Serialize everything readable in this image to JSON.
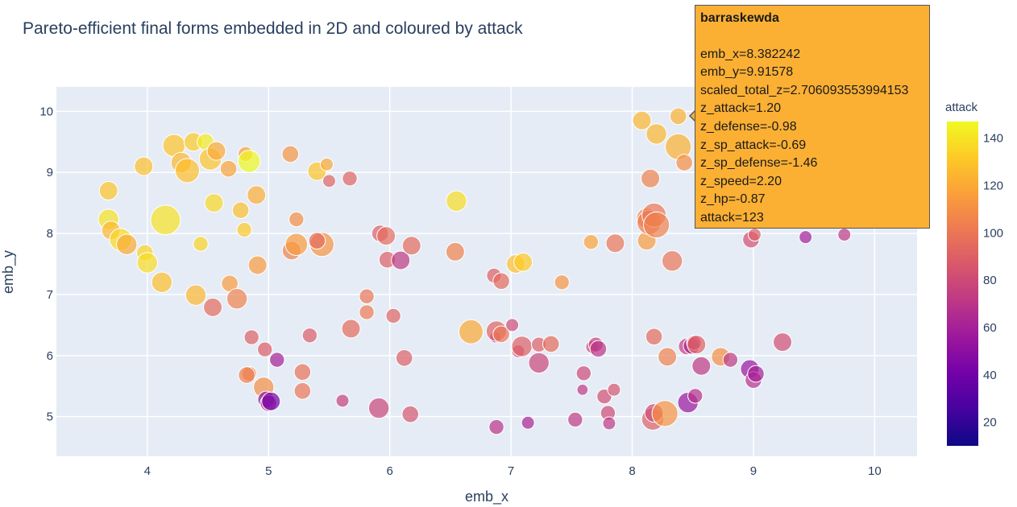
{
  "chart_data": {
    "type": "scatter",
    "title": "Pareto-efficient final forms embedded in 2D and coloured by attack",
    "xlabel": "emb_x",
    "ylabel": "emb_y",
    "xlim": [
      3.25,
      10.35
    ],
    "ylim": [
      4.35,
      10.4
    ],
    "xticks": [
      4,
      5,
      6,
      7,
      8,
      9,
      10
    ],
    "yticks": [
      5,
      6,
      7,
      8,
      9,
      10
    ],
    "grid": true,
    "colorbar": {
      "title": "attack",
      "range": [
        10,
        147
      ],
      "ticks": [
        20,
        40,
        60,
        80,
        100,
        120,
        140
      ]
    },
    "colorscale": [
      "#0d0887",
      "#46039f",
      "#7201a8",
      "#9c179e",
      "#bd3786",
      "#d8576b",
      "#ed7953",
      "#fb9f3a",
      "#fdca26",
      "#f0f921"
    ],
    "points": [
      {
        "x": 3.68,
        "y": 8.7,
        "s": 1.0,
        "a": 130
      },
      {
        "x": 3.68,
        "y": 8.23,
        "s": 1.1,
        "a": 140
      },
      {
        "x": 3.7,
        "y": 8.05,
        "s": 1.0,
        "a": 125
      },
      {
        "x": 3.78,
        "y": 7.9,
        "s": 1.2,
        "a": 137
      },
      {
        "x": 3.83,
        "y": 7.82,
        "s": 1.1,
        "a": 120
      },
      {
        "x": 3.97,
        "y": 9.1,
        "s": 1.0,
        "a": 128
      },
      {
        "x": 3.98,
        "y": 7.68,
        "s": 0.9,
        "a": 135
      },
      {
        "x": 4.0,
        "y": 7.52,
        "s": 1.1,
        "a": 138
      },
      {
        "x": 4.12,
        "y": 7.2,
        "s": 1.1,
        "a": 128
      },
      {
        "x": 4.15,
        "y": 8.22,
        "s": 1.6,
        "a": 140
      },
      {
        "x": 4.22,
        "y": 9.44,
        "s": 1.2,
        "a": 130
      },
      {
        "x": 4.28,
        "y": 9.16,
        "s": 1.1,
        "a": 125
      },
      {
        "x": 4.33,
        "y": 9.03,
        "s": 1.3,
        "a": 128
      },
      {
        "x": 4.38,
        "y": 9.5,
        "s": 1.0,
        "a": 132
      },
      {
        "x": 4.4,
        "y": 6.99,
        "s": 1.1,
        "a": 125
      },
      {
        "x": 4.44,
        "y": 7.83,
        "s": 0.8,
        "a": 135
      },
      {
        "x": 4.48,
        "y": 9.5,
        "s": 0.9,
        "a": 143
      },
      {
        "x": 4.52,
        "y": 9.22,
        "s": 1.2,
        "a": 130
      },
      {
        "x": 4.55,
        "y": 8.5,
        "s": 1.0,
        "a": 136
      },
      {
        "x": 4.54,
        "y": 6.79,
        "s": 1.0,
        "a": 95
      },
      {
        "x": 4.57,
        "y": 9.35,
        "s": 1.0,
        "a": 120
      },
      {
        "x": 4.67,
        "y": 9.06,
        "s": 0.9,
        "a": 118
      },
      {
        "x": 4.68,
        "y": 7.18,
        "s": 0.9,
        "a": 115
      },
      {
        "x": 4.74,
        "y": 6.93,
        "s": 1.1,
        "a": 105
      },
      {
        "x": 4.77,
        "y": 8.38,
        "s": 0.9,
        "a": 128
      },
      {
        "x": 4.8,
        "y": 8.06,
        "s": 0.8,
        "a": 132
      },
      {
        "x": 4.81,
        "y": 9.3,
        "s": 0.8,
        "a": 118
      },
      {
        "x": 4.84,
        "y": 9.18,
        "s": 1.2,
        "a": 147
      },
      {
        "x": 4.86,
        "y": 6.3,
        "s": 0.8,
        "a": 90
      },
      {
        "x": 4.9,
        "y": 8.63,
        "s": 1.0,
        "a": 122
      },
      {
        "x": 4.91,
        "y": 7.48,
        "s": 1.0,
        "a": 115
      },
      {
        "x": 4.84,
        "y": 5.7,
        "s": 0.8,
        "a": 100
      },
      {
        "x": 4.82,
        "y": 5.68,
        "s": 0.9,
        "a": 105
      },
      {
        "x": 4.97,
        "y": 6.1,
        "s": 0.8,
        "a": 88
      },
      {
        "x": 4.96,
        "y": 5.48,
        "s": 1.1,
        "a": 110
      },
      {
        "x": 4.98,
        "y": 5.28,
        "s": 0.9,
        "a": 50
      },
      {
        "x": 5.0,
        "y": 5.22,
        "s": 0.9,
        "a": 70
      },
      {
        "x": 5.02,
        "y": 5.25,
        "s": 1.0,
        "a": 40
      },
      {
        "x": 5.07,
        "y": 5.93,
        "s": 0.8,
        "a": 60
      },
      {
        "x": 5.18,
        "y": 9.3,
        "s": 0.9,
        "a": 112
      },
      {
        "x": 5.19,
        "y": 7.72,
        "s": 1.0,
        "a": 105
      },
      {
        "x": 5.23,
        "y": 8.23,
        "s": 0.8,
        "a": 110
      },
      {
        "x": 5.23,
        "y": 7.82,
        "s": 1.2,
        "a": 115
      },
      {
        "x": 5.28,
        "y": 5.73,
        "s": 0.9,
        "a": 98
      },
      {
        "x": 5.28,
        "y": 5.42,
        "s": 0.9,
        "a": 100
      },
      {
        "x": 5.34,
        "y": 6.33,
        "s": 0.8,
        "a": 88
      },
      {
        "x": 5.4,
        "y": 9.02,
        "s": 1.0,
        "a": 130
      },
      {
        "x": 5.44,
        "y": 7.82,
        "s": 1.3,
        "a": 112
      },
      {
        "x": 5.4,
        "y": 7.88,
        "s": 0.9,
        "a": 95
      },
      {
        "x": 5.48,
        "y": 9.13,
        "s": 0.7,
        "a": 120
      },
      {
        "x": 5.5,
        "y": 8.86,
        "s": 0.7,
        "a": 92
      },
      {
        "x": 5.61,
        "y": 5.26,
        "s": 0.7,
        "a": 75
      },
      {
        "x": 5.67,
        "y": 8.9,
        "s": 0.8,
        "a": 92
      },
      {
        "x": 5.68,
        "y": 6.44,
        "s": 1.0,
        "a": 95
      },
      {
        "x": 5.81,
        "y": 6.97,
        "s": 0.8,
        "a": 100
      },
      {
        "x": 5.81,
        "y": 6.71,
        "s": 0.8,
        "a": 102
      },
      {
        "x": 5.91,
        "y": 5.14,
        "s": 1.1,
        "a": 78
      },
      {
        "x": 5.92,
        "y": 8.0,
        "s": 0.9,
        "a": 90
      },
      {
        "x": 5.97,
        "y": 7.96,
        "s": 1.0,
        "a": 95
      },
      {
        "x": 5.98,
        "y": 7.57,
        "s": 0.9,
        "a": 90
      },
      {
        "x": 6.03,
        "y": 6.65,
        "s": 0.8,
        "a": 92
      },
      {
        "x": 6.09,
        "y": 7.56,
        "s": 1.0,
        "a": 72
      },
      {
        "x": 6.12,
        "y": 5.96,
        "s": 0.9,
        "a": 90
      },
      {
        "x": 6.17,
        "y": 5.04,
        "s": 0.9,
        "a": 85
      },
      {
        "x": 6.18,
        "y": 7.8,
        "s": 1.0,
        "a": 95
      },
      {
        "x": 6.54,
        "y": 7.7,
        "s": 1.0,
        "a": 105
      },
      {
        "x": 6.55,
        "y": 8.53,
        "s": 1.1,
        "a": 138
      },
      {
        "x": 6.67,
        "y": 6.39,
        "s": 1.3,
        "a": 120
      },
      {
        "x": 6.86,
        "y": 7.31,
        "s": 0.8,
        "a": 90
      },
      {
        "x": 6.87,
        "y": 6.3,
        "s": 0.6,
        "a": 70
      },
      {
        "x": 6.88,
        "y": 6.4,
        "s": 1.1,
        "a": 92
      },
      {
        "x": 6.88,
        "y": 4.83,
        "s": 0.8,
        "a": 70
      },
      {
        "x": 6.92,
        "y": 6.35,
        "s": 0.9,
        "a": 100
      },
      {
        "x": 6.92,
        "y": 7.22,
        "s": 0.9,
        "a": 95
      },
      {
        "x": 7.01,
        "y": 6.5,
        "s": 0.7,
        "a": 80
      },
      {
        "x": 7.04,
        "y": 7.5,
        "s": 1.0,
        "a": 128
      },
      {
        "x": 7.06,
        "y": 6.07,
        "s": 0.7,
        "a": 82
      },
      {
        "x": 7.09,
        "y": 6.15,
        "s": 1.1,
        "a": 90
      },
      {
        "x": 7.1,
        "y": 7.53,
        "s": 1.0,
        "a": 132
      },
      {
        "x": 7.14,
        "y": 4.9,
        "s": 0.7,
        "a": 62
      },
      {
        "x": 7.23,
        "y": 6.18,
        "s": 0.8,
        "a": 90
      },
      {
        "x": 7.23,
        "y": 5.88,
        "s": 1.1,
        "a": 78
      },
      {
        "x": 7.33,
        "y": 6.19,
        "s": 0.9,
        "a": 95
      },
      {
        "x": 7.42,
        "y": 7.2,
        "s": 0.8,
        "a": 112
      },
      {
        "x": 7.53,
        "y": 4.95,
        "s": 0.8,
        "a": 72
      },
      {
        "x": 7.6,
        "y": 5.71,
        "s": 0.8,
        "a": 80
      },
      {
        "x": 7.59,
        "y": 5.44,
        "s": 0.6,
        "a": 72
      },
      {
        "x": 7.66,
        "y": 7.86,
        "s": 0.8,
        "a": 118
      },
      {
        "x": 7.67,
        "y": 6.14,
        "s": 0.7,
        "a": 82
      },
      {
        "x": 7.7,
        "y": 6.18,
        "s": 0.8,
        "a": 75
      },
      {
        "x": 7.72,
        "y": 6.11,
        "s": 0.9,
        "a": 70
      },
      {
        "x": 7.77,
        "y": 5.33,
        "s": 0.8,
        "a": 82
      },
      {
        "x": 7.8,
        "y": 5.06,
        "s": 0.8,
        "a": 80
      },
      {
        "x": 7.81,
        "y": 4.89,
        "s": 0.7,
        "a": 72
      },
      {
        "x": 7.85,
        "y": 5.44,
        "s": 0.7,
        "a": 85
      },
      {
        "x": 7.86,
        "y": 7.84,
        "s": 1.0,
        "a": 100
      },
      {
        "x": 8.08,
        "y": 9.85,
        "s": 1.0,
        "a": 125
      },
      {
        "x": 8.12,
        "y": 8.25,
        "s": 1.1,
        "a": 108
      },
      {
        "x": 8.15,
        "y": 8.9,
        "s": 1.0,
        "a": 105
      },
      {
        "x": 8.12,
        "y": 7.88,
        "s": 1.0,
        "a": 115
      },
      {
        "x": 8.14,
        "y": 8.18,
        "s": 1.3,
        "a": 102
      },
      {
        "x": 8.18,
        "y": 8.3,
        "s": 1.3,
        "a": 100
      },
      {
        "x": 8.2,
        "y": 8.14,
        "s": 1.4,
        "a": 105
      },
      {
        "x": 8.18,
        "y": 6.31,
        "s": 0.9,
        "a": 95
      },
      {
        "x": 8.17,
        "y": 4.96,
        "s": 1.2,
        "a": 90
      },
      {
        "x": 8.18,
        "y": 5.06,
        "s": 1.0,
        "a": 80
      },
      {
        "x": 8.2,
        "y": 9.63,
        "s": 1.1,
        "a": 125
      },
      {
        "x": 8.27,
        "y": 5.05,
        "s": 1.4,
        "a": 112
      },
      {
        "x": 8.29,
        "y": 5.98,
        "s": 1.0,
        "a": 105
      },
      {
        "x": 8.33,
        "y": 7.55,
        "s": 1.1,
        "a": 100
      },
      {
        "x": 8.38,
        "y": 9.92,
        "s": 0.9,
        "a": 123
      },
      {
        "x": 8.38,
        "y": 9.42,
        "s": 1.4,
        "a": 123
      },
      {
        "x": 8.43,
        "y": 9.16,
        "s": 0.9,
        "a": 110
      },
      {
        "x": 8.45,
        "y": 6.15,
        "s": 0.9,
        "a": 75
      },
      {
        "x": 8.46,
        "y": 5.23,
        "s": 1.1,
        "a": 55
      },
      {
        "x": 8.49,
        "y": 6.16,
        "s": 0.9,
        "a": 62
      },
      {
        "x": 8.51,
        "y": 6.21,
        "s": 0.8,
        "a": 80
      },
      {
        "x": 8.53,
        "y": 6.18,
        "s": 1.0,
        "a": 90
      },
      {
        "x": 8.52,
        "y": 5.34,
        "s": 0.8,
        "a": 68
      },
      {
        "x": 8.57,
        "y": 5.83,
        "s": 1.0,
        "a": 72
      },
      {
        "x": 8.73,
        "y": 5.98,
        "s": 1.0,
        "a": 110
      },
      {
        "x": 8.81,
        "y": 8.23,
        "s": 0.8,
        "a": 95
      },
      {
        "x": 8.81,
        "y": 5.93,
        "s": 0.8,
        "a": 72
      },
      {
        "x": 8.97,
        "y": 5.78,
        "s": 1.0,
        "a": 55
      },
      {
        "x": 8.98,
        "y": 7.9,
        "s": 0.9,
        "a": 82
      },
      {
        "x": 9.01,
        "y": 7.98,
        "s": 0.7,
        "a": 90
      },
      {
        "x": 9.0,
        "y": 5.6,
        "s": 0.9,
        "a": 68
      },
      {
        "x": 9.02,
        "y": 5.7,
        "s": 0.9,
        "a": 60
      },
      {
        "x": 9.24,
        "y": 6.22,
        "s": 1.0,
        "a": 82
      },
      {
        "x": 9.43,
        "y": 7.94,
        "s": 0.7,
        "a": 60
      },
      {
        "x": 9.75,
        "y": 7.98,
        "s": 0.7,
        "a": 72
      }
    ]
  },
  "tooltip": {
    "title": "barraskewda",
    "rows": [
      "emb_x=8.382242",
      "emb_y=9.91578",
      "scaled_total_z=2.706093553994153",
      "z_attack=1.20",
      "z_defense=-0.98",
      "z_sp_attack=-0.69",
      "z_sp_defense=-1.46",
      "z_speed=2.20",
      "z_hp=-0.87",
      "attack=123"
    ],
    "color": "#fbb034"
  }
}
